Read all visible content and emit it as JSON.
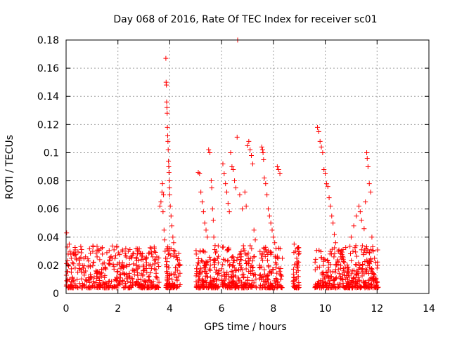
{
  "chart_data": {
    "type": "scatter",
    "title": "Day 068 of 2016, Rate Of TEC Index for receiver sc01",
    "xlabel": "GPS time / hours",
    "ylabel": "ROTI / TECUs",
    "xlim": [
      0,
      14
    ],
    "ylim": [
      0,
      0.18
    ],
    "x_ticks": [
      0,
      2,
      4,
      6,
      8,
      10,
      12,
      14
    ],
    "x_tick_labels": [
      "0",
      "2",
      "4",
      "6",
      "8",
      "10",
      "12",
      "14"
    ],
    "y_ticks": [
      0,
      0.02,
      0.04,
      0.06,
      0.08,
      0.1,
      0.12,
      0.14,
      0.16,
      0.18
    ],
    "y_tick_labels": [
      "0",
      "0.02",
      "0.04",
      "0.06",
      "0.08",
      "0.1",
      "0.12",
      "0.14",
      "0.16",
      "0.18"
    ],
    "grid": true,
    "marker": "+",
    "color": "#ff0000",
    "series": [
      {
        "name": "ROTI",
        "points": [
          [
            0.02,
            0.043
          ],
          [
            0.05,
            0.033
          ],
          [
            0.08,
            0.028
          ],
          [
            0.12,
            0.035
          ],
          [
            0.15,
            0.03
          ],
          [
            0.2,
            0.025
          ],
          [
            0.25,
            0.022
          ],
          [
            0.3,
            0.028
          ],
          [
            0.35,
            0.018
          ],
          [
            0.4,
            0.024
          ],
          [
            0.45,
            0.015
          ],
          [
            0.5,
            0.021
          ],
          [
            0.6,
            0.017
          ],
          [
            0.7,
            0.013
          ],
          [
            0.75,
            0.026
          ],
          [
            0.85,
            0.019
          ],
          [
            0.95,
            0.012
          ],
          [
            1.05,
            0.022
          ],
          [
            1.15,
            0.016
          ],
          [
            1.3,
            0.024
          ],
          [
            1.35,
            0.032
          ],
          [
            1.4,
            0.028
          ],
          [
            1.5,
            0.018
          ],
          [
            1.65,
            0.021
          ],
          [
            1.8,
            0.025
          ],
          [
            1.85,
            0.031
          ],
          [
            1.95,
            0.033
          ],
          [
            2.05,
            0.022
          ],
          [
            2.2,
            0.019
          ],
          [
            2.3,
            0.027
          ],
          [
            2.4,
            0.03
          ],
          [
            2.5,
            0.026
          ],
          [
            2.6,
            0.021
          ],
          [
            2.7,
            0.032
          ],
          [
            2.8,
            0.03
          ],
          [
            2.9,
            0.024
          ],
          [
            3.0,
            0.019
          ],
          [
            3.1,
            0.025
          ],
          [
            3.2,
            0.02
          ],
          [
            3.3,
            0.028
          ],
          [
            3.4,
            0.033
          ],
          [
            3.5,
            0.026
          ],
          [
            3.55,
            0.022
          ],
          [
            3.62,
            0.062
          ],
          [
            3.66,
            0.065
          ],
          [
            3.7,
            0.072
          ],
          [
            3.72,
            0.078
          ],
          [
            3.74,
            0.058
          ],
          [
            3.76,
            0.07
          ],
          [
            3.78,
            0.045
          ],
          [
            3.8,
            0.038
          ],
          [
            3.82,
            0.03
          ],
          [
            3.84,
            0.025
          ],
          [
            3.85,
            0.167
          ],
          [
            3.86,
            0.15
          ],
          [
            3.87,
            0.148
          ],
          [
            3.88,
            0.136
          ],
          [
            3.89,
            0.132
          ],
          [
            3.9,
            0.128
          ],
          [
            3.91,
            0.118
          ],
          [
            3.92,
            0.112
          ],
          [
            3.93,
            0.108
          ],
          [
            3.94,
            0.102
          ],
          [
            3.95,
            0.094
          ],
          [
            3.96,
            0.09
          ],
          [
            3.97,
            0.086
          ],
          [
            3.98,
            0.08
          ],
          [
            3.99,
            0.075
          ],
          [
            4.0,
            0.07
          ],
          [
            4.02,
            0.062
          ],
          [
            4.05,
            0.055
          ],
          [
            4.08,
            0.048
          ],
          [
            4.12,
            0.04
          ],
          [
            4.15,
            0.036
          ],
          [
            4.2,
            0.03
          ],
          [
            4.25,
            0.027
          ],
          [
            4.3,
            0.024
          ],
          [
            4.35,
            0.02
          ],
          [
            5.1,
            0.086
          ],
          [
            5.15,
            0.085
          ],
          [
            5.2,
            0.072
          ],
          [
            5.25,
            0.065
          ],
          [
            5.3,
            0.058
          ],
          [
            5.35,
            0.05
          ],
          [
            5.4,
            0.045
          ],
          [
            5.45,
            0.04
          ],
          [
            5.5,
            0.102
          ],
          [
            5.55,
            0.1
          ],
          [
            5.6,
            0.08
          ],
          [
            5.62,
            0.075
          ],
          [
            5.65,
            0.06
          ],
          [
            5.68,
            0.052
          ],
          [
            5.7,
            0.04
          ],
          [
            5.75,
            0.034
          ],
          [
            5.8,
            0.03
          ],
          [
            5.85,
            0.025
          ],
          [
            6.05,
            0.092
          ],
          [
            6.1,
            0.085
          ],
          [
            6.15,
            0.078
          ],
          [
            6.2,
            0.072
          ],
          [
            6.25,
            0.064
          ],
          [
            6.3,
            0.058
          ],
          [
            6.35,
            0.1
          ],
          [
            6.4,
            0.09
          ],
          [
            6.45,
            0.088
          ],
          [
            6.5,
            0.08
          ],
          [
            6.55,
            0.075
          ],
          [
            6.6,
            0.111
          ],
          [
            6.62,
            0.18
          ],
          [
            6.7,
            0.07
          ],
          [
            6.8,
            0.06
          ],
          [
            6.9,
            0.072
          ],
          [
            6.95,
            0.062
          ],
          [
            7.0,
            0.105
          ],
          [
            7.05,
            0.108
          ],
          [
            7.1,
            0.102
          ],
          [
            7.15,
            0.098
          ],
          [
            7.2,
            0.092
          ],
          [
            7.25,
            0.045
          ],
          [
            7.3,
            0.038
          ],
          [
            7.55,
            0.104
          ],
          [
            7.58,
            0.102
          ],
          [
            7.6,
            0.1
          ],
          [
            7.62,
            0.095
          ],
          [
            7.65,
            0.082
          ],
          [
            7.7,
            0.078
          ],
          [
            7.75,
            0.07
          ],
          [
            7.8,
            0.06
          ],
          [
            7.85,
            0.055
          ],
          [
            7.9,
            0.05
          ],
          [
            7.95,
            0.045
          ],
          [
            8.0,
            0.04
          ],
          [
            8.05,
            0.036
          ],
          [
            8.1,
            0.032
          ],
          [
            8.15,
            0.09
          ],
          [
            8.2,
            0.088
          ],
          [
            8.25,
            0.085
          ],
          [
            8.8,
            0.035
          ],
          [
            8.85,
            0.03
          ],
          [
            8.9,
            0.025
          ],
          [
            8.95,
            0.02
          ],
          [
            9.7,
            0.118
          ],
          [
            9.75,
            0.115
          ],
          [
            9.8,
            0.108
          ],
          [
            9.85,
            0.104
          ],
          [
            9.9,
            0.1
          ],
          [
            9.95,
            0.088
          ],
          [
            10.0,
            0.085
          ],
          [
            10.05,
            0.078
          ],
          [
            10.1,
            0.076
          ],
          [
            10.15,
            0.068
          ],
          [
            10.2,
            0.062
          ],
          [
            10.25,
            0.055
          ],
          [
            10.3,
            0.05
          ],
          [
            10.35,
            0.042
          ],
          [
            10.4,
            0.036
          ],
          [
            10.5,
            0.03
          ],
          [
            10.6,
            0.026
          ],
          [
            10.7,
            0.024
          ],
          [
            11.0,
            0.04
          ],
          [
            11.1,
            0.048
          ],
          [
            11.2,
            0.055
          ],
          [
            11.3,
            0.062
          ],
          [
            11.35,
            0.058
          ],
          [
            11.4,
            0.052
          ],
          [
            11.5,
            0.046
          ],
          [
            11.55,
            0.065
          ],
          [
            11.6,
            0.1
          ],
          [
            11.62,
            0.096
          ],
          [
            11.65,
            0.09
          ],
          [
            11.7,
            0.078
          ],
          [
            11.75,
            0.072
          ],
          [
            11.8,
            0.04
          ],
          [
            11.85,
            0.03
          ],
          [
            11.9,
            0.025
          ],
          [
            11.95,
            0.022
          ],
          [
            12.0,
            0.018
          ]
        ]
      }
    ]
  }
}
